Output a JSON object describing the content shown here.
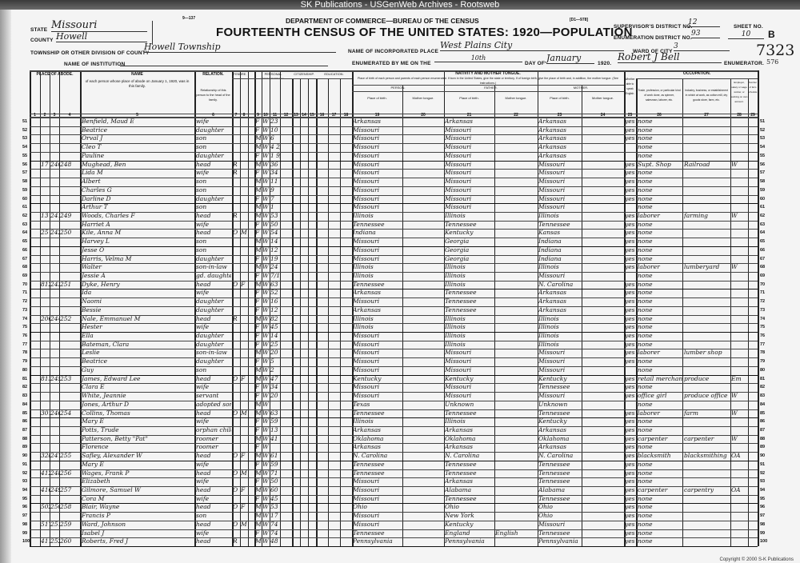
{
  "banner": "SK Publications - USGenWeb Archives - Rootsweb",
  "form_number": "9—137",
  "form_code": "[D1—978]",
  "department": "DEPARTMENT OF COMMERCE—BUREAU OF THE CENSUS",
  "title": "FOURTEENTH CENSUS OF THE UNITED STATES: 1920—POPULATION",
  "fields": {
    "state_label": "STATE",
    "state": "Missouri",
    "county_label": "COUNTY",
    "county": "Howell",
    "township_label": "TOWNSHIP OR OTHER DIVISION OF COUNTY",
    "township": "Howell Township",
    "institution_label": "NAME OF INSTITUTION",
    "place_label": "NAME OF INCORPORATED PLACE",
    "place": "West Plains City",
    "ward_label": "WARD OF CITY",
    "ward": "3",
    "supervisor_label": "SUPERVISOR'S DISTRICT NO.",
    "supervisor": "12",
    "enumeration_label": "ENUMERATION DISTRICT NO.",
    "enumeration": "93",
    "sheet_label": "SHEET NO.",
    "sheet": "10",
    "sheet_side": "B",
    "enumerated_label": "ENUMERATED BY ME ON THE",
    "day": "10th",
    "dayof_label": "DAY OF",
    "month": "January",
    "year": "1920.",
    "enumerator": "Robert J Bell",
    "enumerator_label": "ENUMERATOR.",
    "stamp": "7323",
    "stamp2": "576"
  },
  "headers": {
    "abode": "PLACE OF ABODE.",
    "name": "NAME",
    "name_sub": "of each person whose place of abode on January 1, 1920, was in this family.",
    "relation": "RELATION.",
    "relation_sub": "Relationship of this person to the head of the family.",
    "tenure": "TENURE.",
    "personal": "PERSONAL DESCRIPTION.",
    "citizenship": "CITIZENSHIP.",
    "education": "EDUCATION.",
    "nativity": "NATIVITY AND MOTHER TONGUE.",
    "nativity_sub": "Place of birth of each person and parents of each person enumerated. If born in the United States, give the state or territory. If of foreign birth, give the place of birth and, in addition, the mother tongue. (See instructions.)",
    "person": "PERSON.",
    "father": "FATHER.",
    "mother": "MOTHER.",
    "place_of_birth": "Place of birth.",
    "mother_tongue": "Mother tongue.",
    "english": "Whether able to speak English.",
    "occupation": "OCCUPATION.",
    "trade": "Trade, profession, or particular kind of work done, as spinner, salesman, laborer, etc.",
    "industry": "Industry, business, or establishment in which at work, as cotton mill, dry goods store, farm, etc.",
    "employer": "Employer, salary or wage worker, or working on own account.",
    "farm_number": "Number of farm schedule."
  },
  "column_numbers": [
    "1",
    "2",
    "3",
    "4",
    "5",
    "6",
    "7",
    "8",
    "9",
    "10",
    "11",
    "12",
    "13",
    "14",
    "15",
    "16",
    "17",
    "18",
    "19",
    "20",
    "21",
    "22",
    "23",
    "24",
    "25",
    "26",
    "27",
    "28",
    "29"
  ],
  "rows": [
    {
      "n": "51",
      "name": "Benfield, Maud E",
      "rel": "wife",
      "sex": "F",
      "race": "W",
      "age": "23",
      "pb": "Arkansas",
      "fb": "Arkansas",
      "mb": "Arkansas",
      "eng": "yes",
      "occ": "none"
    },
    {
      "n": "52",
      "name": "Beatrice",
      "rel": "daughter",
      "sex": "F",
      "race": "W",
      "age": "10",
      "pb": "Missouri",
      "fb": "Missouri",
      "mb": "Arkansas",
      "eng": "yes",
      "occ": "none"
    },
    {
      "n": "53",
      "name": "Orval J",
      "rel": "son",
      "sex": "M",
      "race": "W",
      "age": "6",
      "pb": "Missouri",
      "fb": "Missouri",
      "mb": "Arkansas",
      "eng": "yes",
      "occ": "none"
    },
    {
      "n": "54",
      "name": "Cleo T",
      "rel": "son",
      "sex": "M",
      "race": "W",
      "age": "4 2/12",
      "pb": "Missouri",
      "fb": "Missouri",
      "mb": "Arkansas",
      "occ": "none"
    },
    {
      "n": "55",
      "name": "Pauline",
      "rel": "daughter",
      "sex": "F",
      "race": "W",
      "age": "1 9/12",
      "pb": "Missouri",
      "fb": "Missouri",
      "mb": "Arkansas",
      "occ": "none"
    },
    {
      "n": "56",
      "house": "17",
      "dwelling": "240",
      "family": "248",
      "name": "Mughead, Ben",
      "rel": "head",
      "tenure": "R",
      "sex": "M",
      "race": "W",
      "age": "36",
      "pb": "Missouri",
      "fb": "Missouri",
      "mb": "Missouri",
      "eng": "yes",
      "occ": "Supt. Shop",
      "ind": "Railroad",
      "emp": "W"
    },
    {
      "n": "57",
      "name": "Lida M",
      "rel": "wife",
      "tenure": "R",
      "sex": "F",
      "race": "W",
      "age": "34",
      "pb": "Missouri",
      "fb": "Missouri",
      "mb": "Missouri",
      "eng": "yes",
      "occ": "none"
    },
    {
      "n": "58",
      "name": "Albert",
      "rel": "son",
      "sex": "M",
      "race": "W",
      "age": "11",
      "pb": "Missouri",
      "fb": "Missouri",
      "mb": "Missouri",
      "eng": "yes",
      "occ": "none"
    },
    {
      "n": "59",
      "name": "Charles G",
      "rel": "son",
      "sex": "M",
      "race": "W",
      "age": "9",
      "pb": "Missouri",
      "fb": "Missouri",
      "mb": "Missouri",
      "eng": "yes",
      "occ": "none"
    },
    {
      "n": "60",
      "name": "Darline D",
      "rel": "daughter",
      "sex": "F",
      "race": "W",
      "age": "7",
      "pb": "Missouri",
      "fb": "Missouri",
      "mb": "Missouri",
      "eng": "yes",
      "occ": "none"
    },
    {
      "n": "61",
      "name": "Arthur T",
      "rel": "son",
      "sex": "M",
      "race": "W",
      "age": "1",
      "pb": "Missouri",
      "fb": "Missouri",
      "mb": "Missouri",
      "occ": "none"
    },
    {
      "n": "62",
      "house": "13",
      "dwelling": "241",
      "family": "249",
      "name": "Woods, Charles F",
      "rel": "head",
      "tenure": "R",
      "sex": "M",
      "race": "W",
      "age": "53",
      "pb": "Illinois",
      "fb": "Illinois",
      "mb": "Illinois",
      "eng": "yes",
      "occ": "laborer",
      "ind": "farming",
      "emp": "W"
    },
    {
      "n": "63",
      "name": "Harriet A",
      "rel": "wife",
      "sex": "F",
      "race": "W",
      "age": "50",
      "pb": "Tennessee",
      "fb": "Tennessee",
      "mb": "Tennessee",
      "eng": "yes",
      "occ": "none"
    },
    {
      "n": "64",
      "house": "25",
      "dwelling": "242",
      "family": "250",
      "name": "Kile, Anna M",
      "rel": "head",
      "tenure": "O",
      "mort": "M",
      "sex": "F",
      "race": "W",
      "age": "54",
      "pb": "Indiana",
      "fb": "Kentucky",
      "mb": "Kansas",
      "eng": "yes",
      "occ": "none"
    },
    {
      "n": "65",
      "name": "Harvey L",
      "rel": "son",
      "sex": "M",
      "race": "W",
      "age": "14",
      "pb": "Missouri",
      "fb": "Georgia",
      "mb": "Indiana",
      "eng": "yes",
      "occ": "none"
    },
    {
      "n": "66",
      "name": "Jesse O",
      "rel": "son",
      "sex": "M",
      "race": "W",
      "age": "12",
      "pb": "Missouri",
      "fb": "Georgia",
      "mb": "Indiana",
      "eng": "yes",
      "occ": "none"
    },
    {
      "n": "67",
      "name": "Harris, Velma M",
      "rel": "daughter",
      "sex": "F",
      "race": "W",
      "age": "19",
      "pb": "Missouri",
      "fb": "Georgia",
      "mb": "Indiana",
      "eng": "yes",
      "occ": "none"
    },
    {
      "n": "68",
      "name": "Walter",
      "rel": "son-in-law",
      "sex": "M",
      "race": "W",
      "age": "24",
      "pb": "Illinois",
      "fb": "Illinois",
      "mb": "Illinois",
      "eng": "yes",
      "occ": "laborer",
      "ind": "lumberyard",
      "emp": "W"
    },
    {
      "n": "69",
      "name": "Jessie A",
      "rel": "gd. daughter",
      "sex": "F",
      "race": "W",
      "age": "7/12",
      "pb": "Illinois",
      "fb": "Illinois",
      "mb": "Missouri",
      "occ": "none"
    },
    {
      "n": "70",
      "house": "812",
      "dwelling": "243",
      "family": "251",
      "name": "Dyke, Henry",
      "rel": "head",
      "tenure": "O",
      "mort": "F",
      "sex": "M",
      "race": "W",
      "age": "63",
      "pb": "Tennessee",
      "fb": "Illinois",
      "mb": "N. Carolina",
      "eng": "yes",
      "occ": "none"
    },
    {
      "n": "71",
      "name": "Ida",
      "rel": "wife",
      "sex": "F",
      "race": "W",
      "age": "52",
      "pb": "Arkansas",
      "fb": "Tennessee",
      "mb": "Arkansas",
      "eng": "yes",
      "occ": "none"
    },
    {
      "n": "72",
      "name": "Naomi",
      "rel": "daughter",
      "sex": "F",
      "race": "W",
      "age": "16",
      "pb": "Missouri",
      "fb": "Tennessee",
      "mb": "Arkansas",
      "eng": "yes",
      "occ": "none"
    },
    {
      "n": "73",
      "name": "Bessie",
      "rel": "daughter",
      "sex": "F",
      "race": "W",
      "age": "12",
      "pb": "Arkansas",
      "fb": "Tennessee",
      "mb": "Arkansas",
      "eng": "yes",
      "occ": "none"
    },
    {
      "n": "74",
      "house": "206",
      "dwelling": "244",
      "family": "252",
      "name": "Nale, Emmanuel M",
      "rel": "head",
      "tenure": "R",
      "sex": "M",
      "race": "W",
      "age": "82",
      "pb": "Illinois",
      "fb": "Illinois",
      "mb": "Illinois",
      "eng": "yes",
      "occ": "none"
    },
    {
      "n": "75",
      "name": "Hester",
      "rel": "wife",
      "sex": "F",
      "race": "W",
      "age": "45",
      "pb": "Illinois",
      "fb": "Illinois",
      "mb": "Illinois",
      "eng": "yes",
      "occ": "none"
    },
    {
      "n": "76",
      "name": "Ella",
      "rel": "daughter",
      "sex": "F",
      "race": "W",
      "age": "14",
      "pb": "Missouri",
      "fb": "Illinois",
      "mb": "Illinois",
      "eng": "yes",
      "occ": "none"
    },
    {
      "n": "77",
      "name": "Bateman, Clara",
      "rel": "daughter",
      "sex": "F",
      "race": "W",
      "age": "25",
      "pb": "Missouri",
      "fb": "Illinois",
      "mb": "Illinois",
      "eng": "yes",
      "occ": "none"
    },
    {
      "n": "78",
      "name": "Leslie",
      "rel": "son-in-law",
      "sex": "M",
      "race": "W",
      "age": "20",
      "pb": "Missouri",
      "fb": "Missouri",
      "mb": "Missouri",
      "eng": "yes",
      "occ": "laborer",
      "ind": "lumber shop"
    },
    {
      "n": "79",
      "name": "Beatrice",
      "rel": "daughter",
      "sex": "F",
      "race": "W",
      "age": "5",
      "pb": "Missouri",
      "fb": "Missouri",
      "mb": "Missouri",
      "eng": "yes",
      "occ": "none"
    },
    {
      "n": "80",
      "name": "Guy",
      "rel": "son",
      "sex": "M",
      "race": "W",
      "age": "2",
      "pb": "Missouri",
      "fb": "Missouri",
      "mb": "Missouri",
      "occ": "none"
    },
    {
      "n": "81",
      "house": "813",
      "dwelling": "245",
      "family": "253",
      "name": "James, Edward Lee",
      "rel": "head",
      "tenure": "O",
      "mort": "F",
      "sex": "M",
      "race": "W",
      "age": "47",
      "pb": "Kentucky",
      "fb": "Kentucky",
      "mb": "Kentucky",
      "eng": "yes",
      "occ": "retail merchant",
      "ind": "produce",
      "emp": "Em"
    },
    {
      "n": "82",
      "name": "Clara E",
      "rel": "wife",
      "sex": "F",
      "race": "W",
      "age": "34",
      "pb": "Missouri",
      "fb": "Missouri",
      "mb": "Tennessee",
      "eng": "yes",
      "occ": "none"
    },
    {
      "n": "83",
      "name": "White, Jeannie",
      "rel": "servant",
      "sex": "F",
      "race": "W",
      "age": "20",
      "pb": "Missouri",
      "fb": "Missouri",
      "mb": "Missouri",
      "eng": "yes",
      "occ": "office girl",
      "ind": "produce office",
      "emp": "W"
    },
    {
      "n": "84",
      "name": "Jones, Arthur D",
      "rel": "adopted son",
      "sex": "M",
      "race": "W",
      "pb": "Texas",
      "fb": "Unknown",
      "mb": "Unknown",
      "occ": "none"
    },
    {
      "n": "85",
      "house": "301",
      "dwelling": "246",
      "family": "254",
      "name": "Collins, Thomas",
      "rel": "head",
      "tenure": "O",
      "mort": "M",
      "sex": "M",
      "race": "W",
      "age": "63",
      "pb": "Tennessee",
      "fb": "Tennessee",
      "mb": "Tennessee",
      "eng": "yes",
      "occ": "laborer",
      "ind": "farm",
      "emp": "W"
    },
    {
      "n": "86",
      "name": "Mary E",
      "rel": "wife",
      "sex": "F",
      "race": "W",
      "age": "59",
      "pb": "Illinois",
      "fb": "Illinois",
      "mb": "Kentucky",
      "eng": "yes",
      "occ": "none"
    },
    {
      "n": "87",
      "name": "Potts, Trude",
      "rel": "orphan child",
      "sex": "F",
      "race": "W",
      "age": "13",
      "pb": "Arkansas",
      "fb": "Arkansas",
      "mb": "Arkansas",
      "eng": "yes",
      "occ": "none"
    },
    {
      "n": "88",
      "name": "Patterson, Betty \"Pat\"",
      "rel": "roomer",
      "sex": "M",
      "race": "W",
      "age": "41",
      "pb": "Oklahoma",
      "fb": "Oklahoma",
      "mb": "Oklahoma",
      "eng": "yes",
      "occ": "carpenter",
      "ind": "carpenter",
      "emp": "W"
    },
    {
      "n": "89",
      "name": "Florence",
      "rel": "roomer",
      "sex": "F",
      "race": "W",
      "pb": "Arkansas",
      "fb": "Arkansas",
      "mb": "Arkansas",
      "eng": "yes",
      "occ": "none"
    },
    {
      "n": "90",
      "house": "328",
      "dwelling": "247",
      "family": "255",
      "name": "Safley, Alexander W",
      "rel": "head",
      "tenure": "O",
      "mort": "F",
      "sex": "M",
      "race": "W",
      "age": "61",
      "pb": "N. Carolina",
      "fb": "N. Carolina",
      "mb": "N. Carolina",
      "eng": "yes",
      "occ": "blacksmith",
      "ind": "blacksmithing",
      "emp": "OA"
    },
    {
      "n": "91",
      "name": "Mary E",
      "rel": "wife",
      "sex": "F",
      "race": "W",
      "age": "59",
      "pb": "Tennessee",
      "fb": "Tennessee",
      "mb": "Tennessee",
      "eng": "yes",
      "occ": "none"
    },
    {
      "n": "92",
      "house": "412",
      "dwelling": "248",
      "family": "256",
      "name": "Wages, Frank P",
      "rel": "head",
      "tenure": "O",
      "mort": "M",
      "sex": "M",
      "race": "W",
      "age": "71",
      "pb": "Tennessee",
      "fb": "Tennessee",
      "mb": "Tennessee",
      "eng": "yes",
      "occ": "none"
    },
    {
      "n": "93",
      "name": "Elizabeth",
      "rel": "wife",
      "sex": "F",
      "race": "W",
      "age": "50",
      "pb": "Missouri",
      "fb": "Arkansas",
      "mb": "Tennessee",
      "eng": "yes",
      "occ": "none"
    },
    {
      "n": "94",
      "house": "416",
      "dwelling": "249",
      "family": "257",
      "name": "Gilmore, Samuel W",
      "rel": "head",
      "tenure": "O",
      "mort": "F",
      "sex": "M",
      "race": "W",
      "age": "60",
      "pb": "Missouri",
      "fb": "Alabama",
      "mb": "Alabama",
      "eng": "yes",
      "occ": "carpenter",
      "ind": "carpentry",
      "emp": "OA"
    },
    {
      "n": "95",
      "name": "Cora M",
      "rel": "wife",
      "sex": "F",
      "race": "W",
      "age": "45",
      "pb": "Missouri",
      "fb": "Tennessee",
      "mb": "Tennessee",
      "eng": "yes",
      "occ": "none"
    },
    {
      "n": "96",
      "house": "502",
      "dwelling": "250",
      "family": "258",
      "name": "Blair, Wayne",
      "rel": "head",
      "tenure": "O",
      "mort": "F",
      "sex": "M",
      "race": "W",
      "age": "53",
      "pb": "Ohio",
      "fb": "Ohio",
      "mb": "Ohio",
      "eng": "yes",
      "occ": "none"
    },
    {
      "n": "97",
      "name": "Francis P",
      "rel": "son",
      "sex": "M",
      "race": "W",
      "age": "17",
      "pb": "Missouri",
      "fb": "New York",
      "mb": "Ohio",
      "eng": "yes",
      "occ": "none"
    },
    {
      "n": "98",
      "house": "517",
      "dwelling": "251",
      "family": "259",
      "name": "Ward, Johnson",
      "rel": "head",
      "tenure": "O",
      "mort": "M",
      "sex": "M",
      "race": "W",
      "age": "74",
      "pb": "Missouri",
      "fb": "Kentucky",
      "mb": "Missouri",
      "eng": "yes",
      "occ": "none"
    },
    {
      "n": "99",
      "name": "Isabel J",
      "rel": "wife",
      "sex": "F",
      "race": "W",
      "age": "74",
      "pb": "Tennessee",
      "fb": "England",
      "ft": "English",
      "mb": "Tennessee",
      "eng": "yes",
      "occ": "none"
    },
    {
      "n": "100",
      "house": "411",
      "dwelling": "252",
      "family": "260",
      "name": "Roberts, Fred J",
      "rel": "head",
      "tenure": "R",
      "sex": "M",
      "race": "W",
      "age": "48",
      "pb": "Pennsylvania",
      "fb": "Pennsylvania",
      "mb": "Pennsylvania",
      "eng": "yes",
      "occ": "none"
    }
  ],
  "copyright": "Copyright © 2000 S-K Publications"
}
